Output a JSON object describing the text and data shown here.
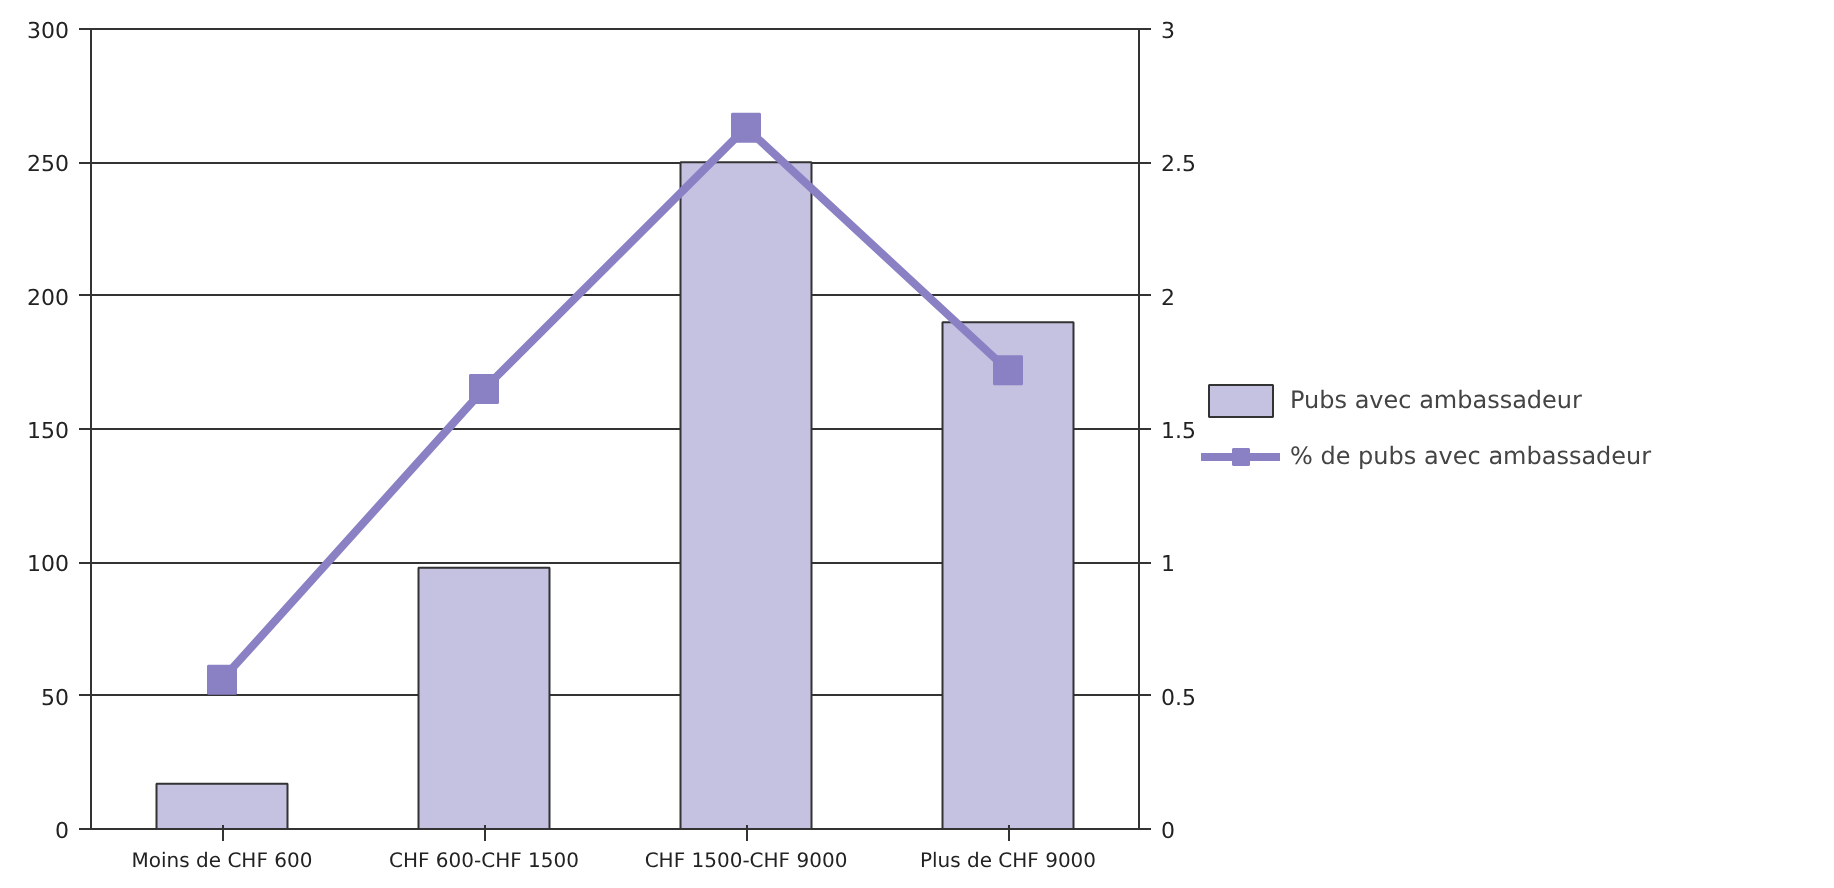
{
  "chart_data": {
    "type": "bar",
    "categories": [
      "Moins de CHF 600",
      "CHF 600-CHF 1500",
      "CHF 1500-CHF 9000",
      "Plus de CHF 9000"
    ],
    "series": [
      {
        "name": "Pubs avec ambassadeur",
        "color": "#c5c1e1",
        "values": [
          17,
          98,
          250,
          190
        ]
      },
      {
        "name": "% de pubs avec ambassadeur",
        "type": "line",
        "axis": "y2",
        "color": "#8a80c4",
        "values": [
          0.56,
          1.65,
          2.63,
          1.72
        ]
      }
    ],
    "ylim": [
      0,
      300
    ],
    "yticks": [
      0,
      50,
      100,
      150,
      200,
      250,
      300
    ],
    "y2lim": [
      0,
      3
    ],
    "y2ticks": [
      0,
      0.5,
      1,
      1.5,
      2,
      2.5,
      3
    ],
    "grid": "y",
    "legend": "right",
    "marker": "square",
    "line_style": "solid"
  }
}
